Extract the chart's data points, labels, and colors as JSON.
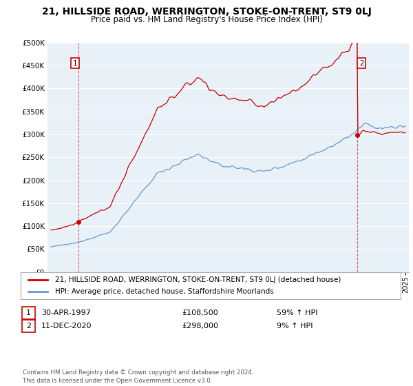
{
  "title": "21, HILLSIDE ROAD, WERRINGTON, STOKE-ON-TRENT, ST9 0LJ",
  "subtitle": "Price paid vs. HM Land Registry's House Price Index (HPI)",
  "ytick_values": [
    0,
    50000,
    100000,
    150000,
    200000,
    250000,
    300000,
    350000,
    400000,
    450000,
    500000
  ],
  "xlim_start": 1994.7,
  "xlim_end": 2025.3,
  "ylim": [
    0,
    500000
  ],
  "point1_x": 1997.33,
  "point1_y": 108500,
  "point1_label": "1",
  "point2_x": 2020.95,
  "point2_y": 298000,
  "point2_label": "2",
  "vline1_x": 1997.33,
  "vline2_x": 2020.95,
  "red_line_color": "#cc0000",
  "blue_line_color": "#6699cc",
  "plot_bg_color": "#e8f0f8",
  "background_color": "#ffffff",
  "grid_color": "#ffffff",
  "legend_label_red": "21, HILLSIDE ROAD, WERRINGTON, STOKE-ON-TRENT, ST9 0LJ (detached house)",
  "legend_label_blue": "HPI: Average price, detached house, Staffordshire Moorlands",
  "table_row1": [
    "1",
    "30-APR-1997",
    "£108,500",
    "59% ↑ HPI"
  ],
  "table_row2": [
    "2",
    "11-DEC-2020",
    "£298,000",
    "9% ↑ HPI"
  ],
  "footer_text": "Contains HM Land Registry data © Crown copyright and database right 2024.\nThis data is licensed under the Open Government Licence v3.0.",
  "title_fontsize": 10,
  "subtitle_fontsize": 8.5,
  "tick_fontsize": 7.5,
  "legend_fontsize": 7.5
}
